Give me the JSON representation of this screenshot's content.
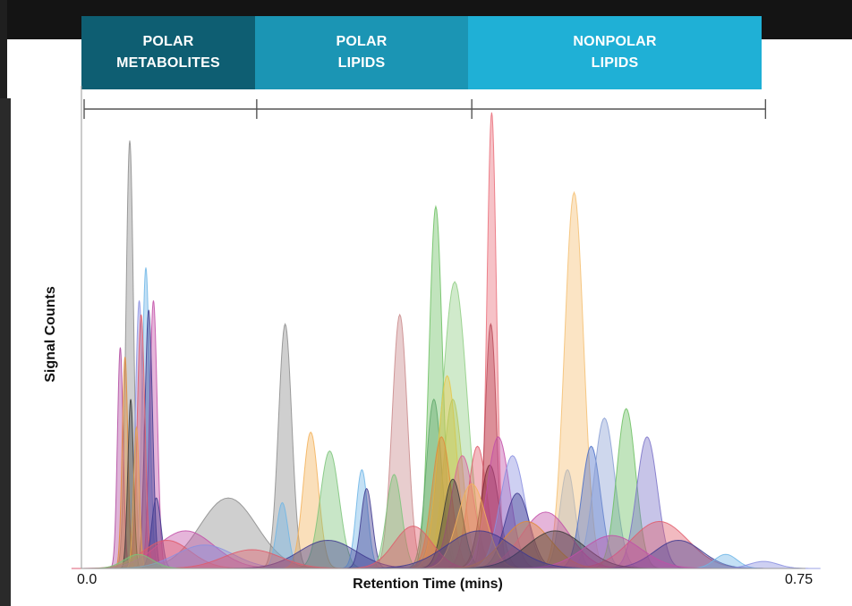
{
  "regions": [
    {
      "line1": "POLAR",
      "line2": "METABOLITES",
      "color": "#0e5e72",
      "x_start": 0.0,
      "x_end": 0.185
    },
    {
      "line1": "POLAR",
      "line2": "LIPIDS",
      "color": "#1b95b4",
      "x_start": 0.185,
      "x_end": 0.412
    },
    {
      "line1": "NONPOLAR",
      "line2": "LIPIDS",
      "color": "#1fb0d6",
      "x_start": 0.412,
      "x_end": 0.722
    }
  ],
  "chart_data": {
    "type": "area",
    "xlabel": "Retention Time (mins)",
    "ylabel": "Signal Counts",
    "x_tick_labels": [
      "0.0",
      "0.75"
    ],
    "xlim": [
      0,
      0.75
    ],
    "ylim": [
      0,
      1
    ],
    "grid": false,
    "legend": "none",
    "peaks": [
      {
        "rt": 0.051,
        "height": 0.91,
        "width": 0.004,
        "color": "#8c8c8c"
      },
      {
        "rt": 0.068,
        "height": 0.64,
        "width": 0.004,
        "color": "#6fb6e6"
      },
      {
        "rt": 0.061,
        "height": 0.57,
        "width": 0.004,
        "color": "#8a8fe0"
      },
      {
        "rt": 0.076,
        "height": 0.57,
        "width": 0.004,
        "color": "#c24fa8"
      },
      {
        "rt": 0.071,
        "height": 0.55,
        "width": 0.004,
        "color": "#3e3a8f"
      },
      {
        "rt": 0.063,
        "height": 0.54,
        "width": 0.004,
        "color": "#e05a6a"
      },
      {
        "rt": 0.041,
        "height": 0.47,
        "width": 0.003,
        "color": "#b04aa0"
      },
      {
        "rt": 0.046,
        "height": 0.45,
        "width": 0.003,
        "color": "#e08a3a"
      },
      {
        "rt": 0.052,
        "height": 0.36,
        "width": 0.003,
        "color": "#3a3a3a"
      },
      {
        "rt": 0.058,
        "height": 0.3,
        "width": 0.003,
        "color": "#e8a24a"
      },
      {
        "rt": 0.079,
        "height": 0.15,
        "width": 0.005,
        "color": "#3e3a8f"
      },
      {
        "rt": 0.155,
        "height": 0.15,
        "width": 0.03,
        "color": "#8c8c8c"
      },
      {
        "rt": 0.11,
        "height": 0.08,
        "width": 0.03,
        "color": "#c24fa8"
      },
      {
        "rt": 0.09,
        "height": 0.06,
        "width": 0.025,
        "color": "#e05a6a"
      },
      {
        "rt": 0.13,
        "height": 0.05,
        "width": 0.03,
        "color": "#8a8fe0"
      },
      {
        "rt": 0.215,
        "height": 0.52,
        "width": 0.007,
        "color": "#8c8c8c"
      },
      {
        "rt": 0.212,
        "height": 0.14,
        "width": 0.006,
        "color": "#6fb6e6"
      },
      {
        "rt": 0.242,
        "height": 0.29,
        "width": 0.008,
        "color": "#f3b25a"
      },
      {
        "rt": 0.262,
        "height": 0.25,
        "width": 0.01,
        "color": "#7cc47a"
      },
      {
        "rt": 0.296,
        "height": 0.21,
        "width": 0.006,
        "color": "#6fb6e6"
      },
      {
        "rt": 0.301,
        "height": 0.17,
        "width": 0.006,
        "color": "#3e3a8f"
      },
      {
        "rt": 0.336,
        "height": 0.54,
        "width": 0.008,
        "color": "#c9888a"
      },
      {
        "rt": 0.33,
        "height": 0.2,
        "width": 0.008,
        "color": "#7cc47a"
      },
      {
        "rt": 0.374,
        "height": 0.77,
        "width": 0.007,
        "color": "#6cbf62"
      },
      {
        "rt": 0.394,
        "height": 0.61,
        "width": 0.013,
        "color": "#8fce84"
      },
      {
        "rt": 0.372,
        "height": 0.36,
        "width": 0.008,
        "color": "#5fa86a"
      },
      {
        "rt": 0.386,
        "height": 0.41,
        "width": 0.01,
        "color": "#e8c84a"
      },
      {
        "rt": 0.392,
        "height": 0.36,
        "width": 0.01,
        "color": "#b8c85a"
      },
      {
        "rt": 0.38,
        "height": 0.28,
        "width": 0.01,
        "color": "#e08a3a"
      },
      {
        "rt": 0.402,
        "height": 0.24,
        "width": 0.012,
        "color": "#d9629a"
      },
      {
        "rt": 0.418,
        "height": 0.26,
        "width": 0.01,
        "color": "#e05a6a"
      },
      {
        "rt": 0.392,
        "height": 0.19,
        "width": 0.01,
        "color": "#3a3a3a"
      },
      {
        "rt": 0.433,
        "height": 0.97,
        "width": 0.005,
        "color": "#ea6e7a"
      },
      {
        "rt": 0.432,
        "height": 0.52,
        "width": 0.006,
        "color": "#b84a58"
      },
      {
        "rt": 0.431,
        "height": 0.22,
        "width": 0.01,
        "color": "#7a2a3a"
      },
      {
        "rt": 0.44,
        "height": 0.28,
        "width": 0.012,
        "color": "#c24fa8"
      },
      {
        "rt": 0.455,
        "height": 0.24,
        "width": 0.013,
        "color": "#8a8fe0"
      },
      {
        "rt": 0.46,
        "height": 0.16,
        "width": 0.013,
        "color": "#3e3a8f"
      },
      {
        "rt": 0.412,
        "height": 0.18,
        "width": 0.015,
        "color": "#f3b25a"
      },
      {
        "rt": 0.52,
        "height": 0.8,
        "width": 0.01,
        "color": "#f5bf72"
      },
      {
        "rt": 0.513,
        "height": 0.21,
        "width": 0.008,
        "color": "#b7b7b7"
      },
      {
        "rt": 0.538,
        "height": 0.26,
        "width": 0.01,
        "color": "#4a6ec8"
      },
      {
        "rt": 0.552,
        "height": 0.32,
        "width": 0.011,
        "color": "#8a9fd4"
      },
      {
        "rt": 0.575,
        "height": 0.34,
        "width": 0.01,
        "color": "#6cbf62"
      },
      {
        "rt": 0.597,
        "height": 0.28,
        "width": 0.011,
        "color": "#7a72c8"
      },
      {
        "rt": 0.49,
        "height": 0.12,
        "width": 0.025,
        "color": "#c24fa8"
      },
      {
        "rt": 0.61,
        "height": 0.1,
        "width": 0.03,
        "color": "#e05a6a"
      },
      {
        "rt": 0.63,
        "height": 0.06,
        "width": 0.025,
        "color": "#3e3a8f"
      },
      {
        "rt": 0.68,
        "height": 0.03,
        "width": 0.012,
        "color": "#6fb6e6"
      },
      {
        "rt": 0.72,
        "height": 0.015,
        "width": 0.015,
        "color": "#8a8fe0"
      },
      {
        "rt": 0.26,
        "height": 0.06,
        "width": 0.03,
        "color": "#3e3a8f"
      },
      {
        "rt": 0.35,
        "height": 0.09,
        "width": 0.02,
        "color": "#e05a6a"
      },
      {
        "rt": 0.47,
        "height": 0.1,
        "width": 0.025,
        "color": "#e08a3a"
      },
      {
        "rt": 0.5,
        "height": 0.08,
        "width": 0.03,
        "color": "#3a3a3a"
      },
      {
        "rt": 0.56,
        "height": 0.07,
        "width": 0.03,
        "color": "#c24fa8"
      },
      {
        "rt": 0.42,
        "height": 0.08,
        "width": 0.035,
        "color": "#3e3a8f"
      },
      {
        "rt": 0.18,
        "height": 0.04,
        "width": 0.03,
        "color": "#e05a6a"
      },
      {
        "rt": 0.06,
        "height": 0.03,
        "width": 0.015,
        "color": "#7cc47a"
      }
    ]
  }
}
